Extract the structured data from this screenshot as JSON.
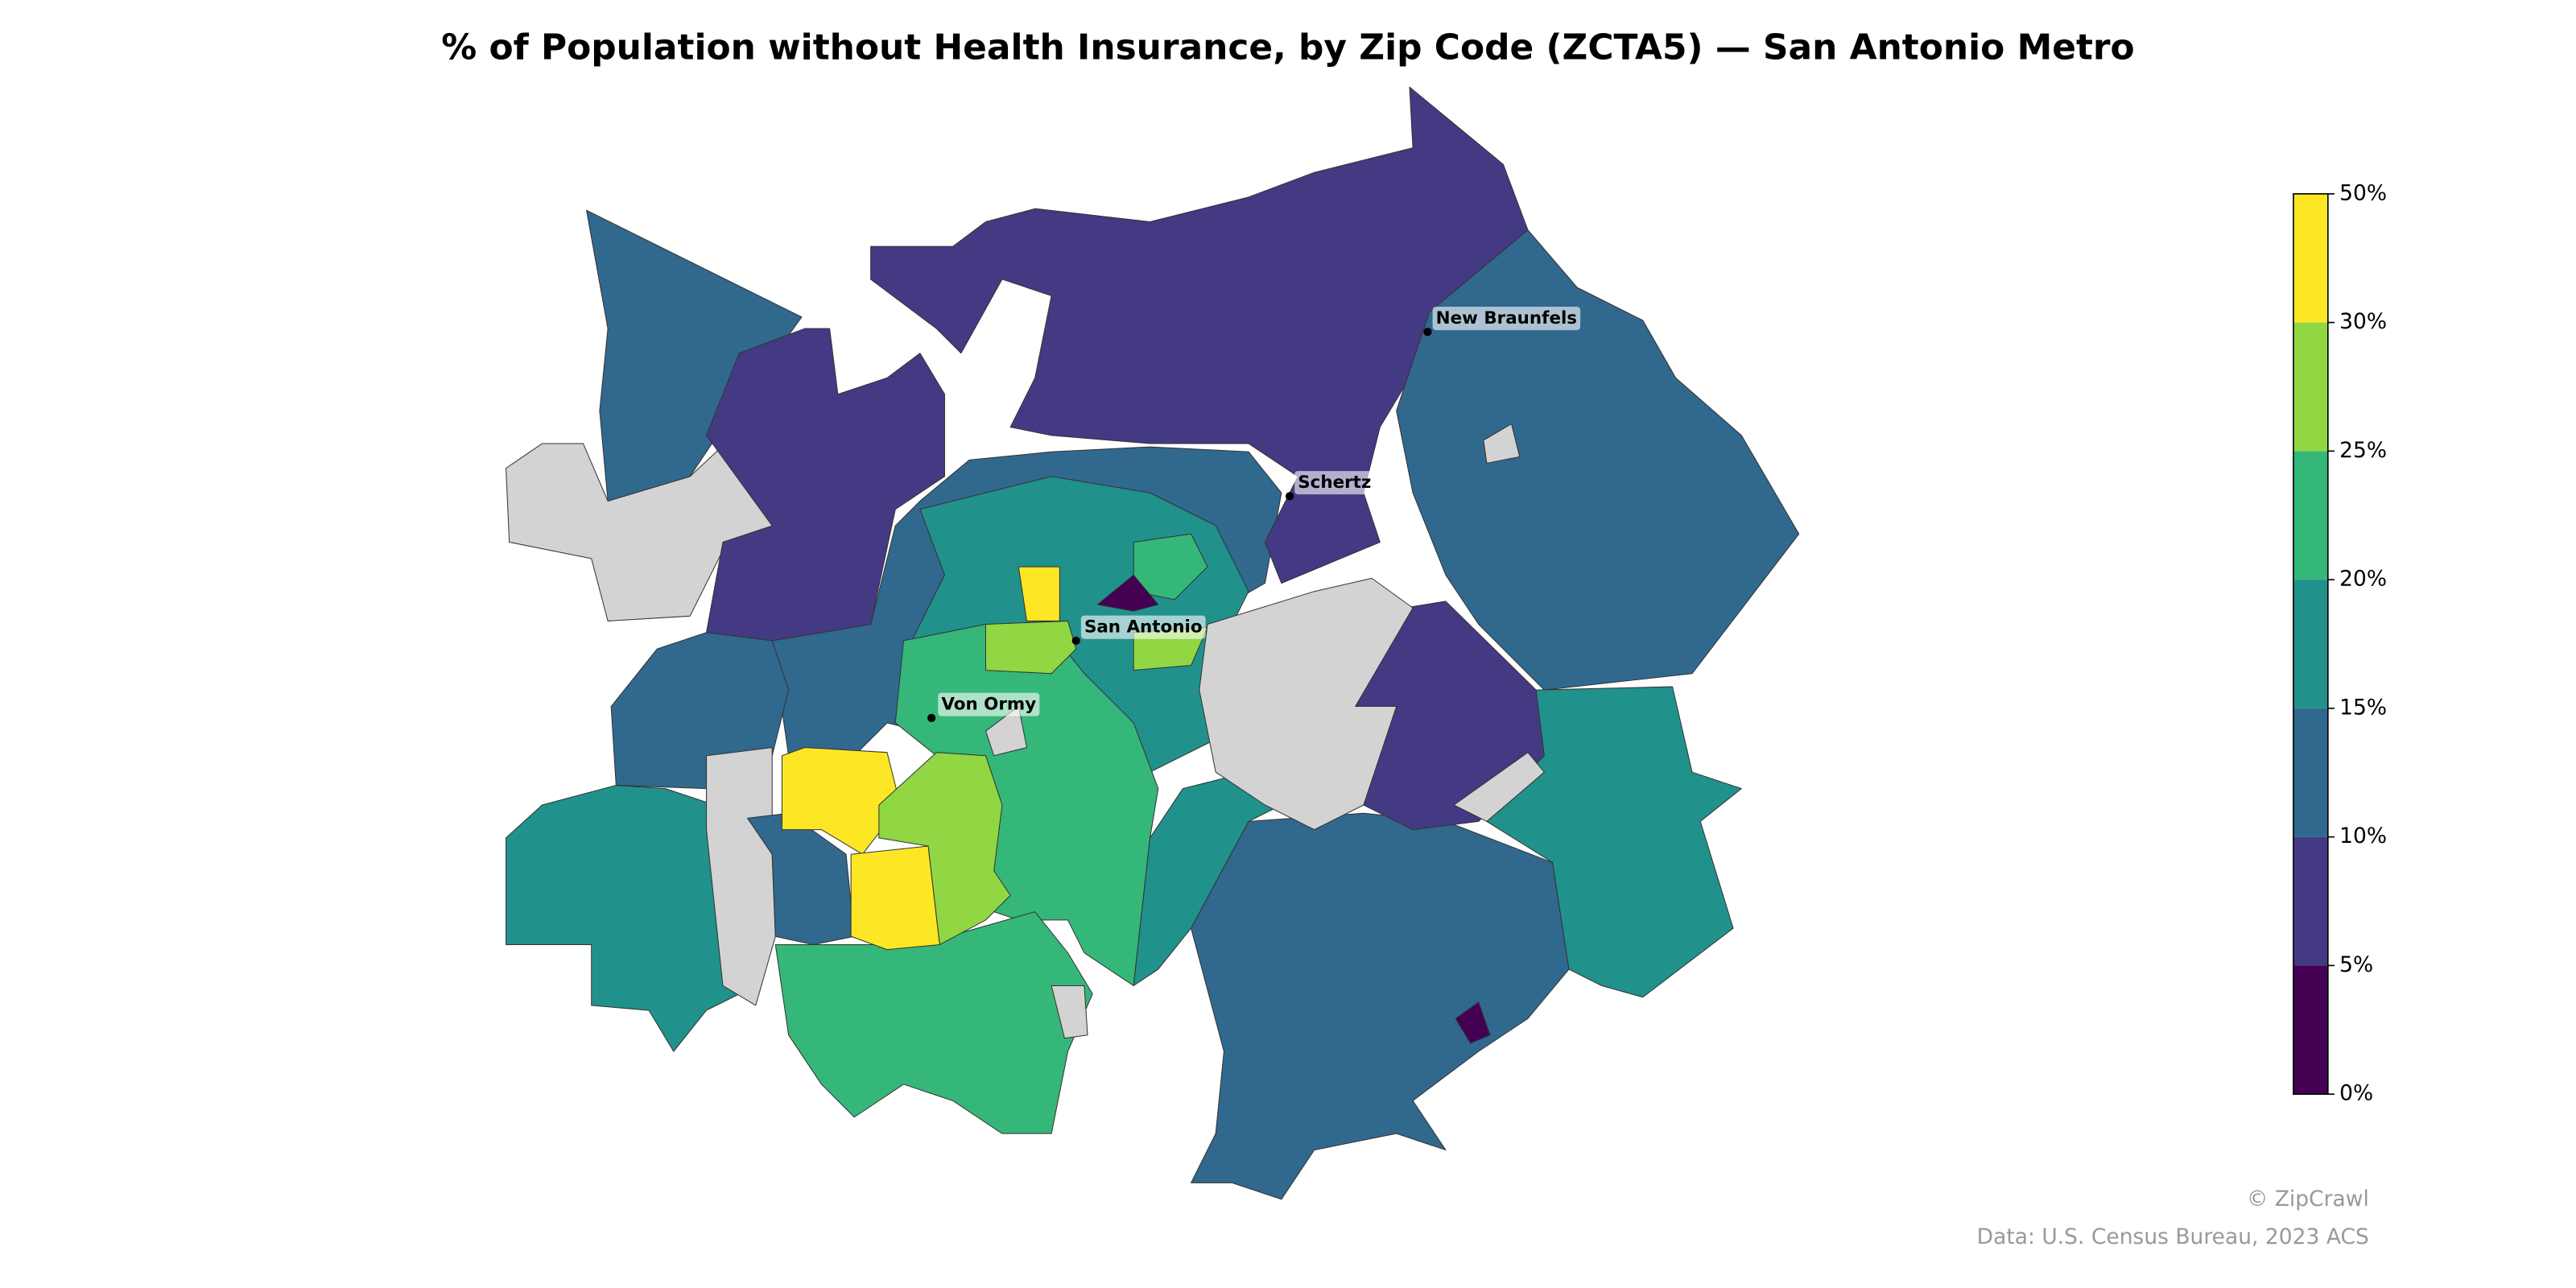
{
  "chart_data": {
    "type": "choropleth",
    "title": "% of Population without Health Insurance, by Zip Code (ZCTA5) — San Antonio Metro",
    "colorbar": {
      "ticks": [
        {
          "value": 0,
          "label": "0%"
        },
        {
          "value": 5,
          "label": "5%"
        },
        {
          "value": 10,
          "label": "10%"
        },
        {
          "value": 15,
          "label": "15%"
        },
        {
          "value": 20,
          "label": "20%"
        },
        {
          "value": 25,
          "label": "25%"
        },
        {
          "value": 30,
          "label": "30%"
        },
        {
          "value": 50,
          "label": "50%"
        }
      ],
      "colors": [
        "#440154",
        "#443983",
        "#31688e",
        "#21918c",
        "#35b779",
        "#90d743",
        "#fde725"
      ]
    },
    "missing_color": "#d3d3d3",
    "places": [
      "New Braunfels",
      "Schertz",
      "San Antonio",
      "Von Ormy"
    ],
    "credits": [
      "© ZipCrawl",
      "Data: U.S. Census Bureau, 2023 ACS"
    ]
  }
}
